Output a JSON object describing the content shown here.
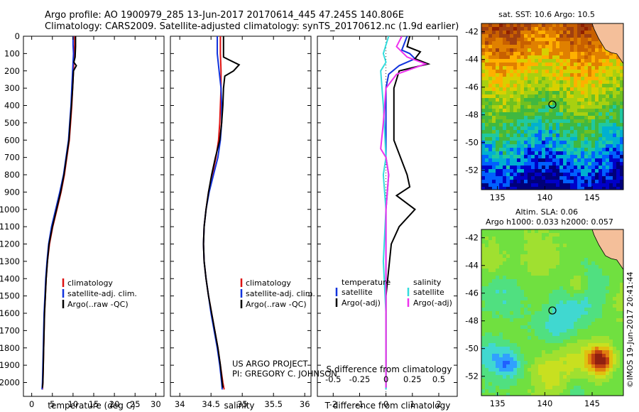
{
  "header": {
    "line1": "Argo profile: AO 1900979_285 13-Jun-2017 20170614_445 47.245S 140.806E",
    "line2": "Climatology: CARS2009. Satellite-adjusted climatology: synTS_20170612.nc (1.9d earlier)"
  },
  "credits": {
    "project": "US ARGO PROJECT",
    "pi": "PI: GREGORY C. JOHNSON",
    "imos": "©IMOS 19-Jun-2017 20:41:44"
  },
  "colors": {
    "climatology": "#dd1111",
    "satellite": "#1133dd",
    "argo": "#000000",
    "sat_salinity": "#33dddd",
    "argo_salinity": "#ee33ee",
    "land": "#f4bf9a"
  },
  "chart_data": [
    {
      "type": "line",
      "id": "temperature",
      "xlabel": "temperature (deg C)",
      "xlim": [
        -2,
        32
      ],
      "ylim": [
        0,
        2080
      ],
      "xticks": [
        0,
        5,
        10,
        15,
        20,
        25,
        30
      ],
      "yticks": [
        0,
        100,
        200,
        300,
        400,
        500,
        600,
        700,
        800,
        900,
        1000,
        1100,
        1200,
        1300,
        1400,
        1500,
        1600,
        1700,
        1800,
        1900,
        2000
      ],
      "legend": [
        "climatology",
        "satellite-adj. clim.",
        "Argo(..raw -QC)"
      ],
      "series": [
        {
          "name": "climatology",
          "color": "#dd1111",
          "points": [
            [
              10.4,
              0
            ],
            [
              10.4,
              50
            ],
            [
              10.3,
              100
            ],
            [
              10.2,
              150
            ],
            [
              10.1,
              200
            ],
            [
              9.9,
              300
            ],
            [
              9.7,
              400
            ],
            [
              9.4,
              500
            ],
            [
              9.1,
              600
            ],
            [
              8.5,
              700
            ],
            [
              7.9,
              800
            ],
            [
              7.1,
              900
            ],
            [
              6.1,
              1000
            ],
            [
              5.1,
              1100
            ],
            [
              4.3,
              1200
            ],
            [
              3.8,
              1300
            ],
            [
              3.5,
              1400
            ],
            [
              3.3,
              1500
            ],
            [
              3.1,
              1600
            ],
            [
              3.0,
              1700
            ],
            [
              2.9,
              1800
            ],
            [
              2.8,
              1900
            ],
            [
              2.7,
              2000
            ],
            [
              2.6,
              2040
            ]
          ]
        },
        {
          "name": "satellite-adj. clim.",
          "color": "#1133dd",
          "points": [
            [
              10.0,
              0
            ],
            [
              10.0,
              50
            ],
            [
              10.1,
              100
            ],
            [
              10.0,
              150
            ],
            [
              9.9,
              200
            ],
            [
              9.7,
              300
            ],
            [
              9.5,
              400
            ],
            [
              9.2,
              500
            ],
            [
              8.9,
              600
            ],
            [
              8.3,
              700
            ],
            [
              7.7,
              800
            ],
            [
              6.8,
              900
            ],
            [
              5.8,
              1000
            ],
            [
              4.8,
              1100
            ],
            [
              4.1,
              1200
            ],
            [
              3.7,
              1300
            ],
            [
              3.4,
              1400
            ],
            [
              3.2,
              1500
            ],
            [
              3.0,
              1600
            ],
            [
              2.9,
              1700
            ],
            [
              2.8,
              1800
            ],
            [
              2.7,
              1900
            ],
            [
              2.6,
              2000
            ],
            [
              2.5,
              2040
            ]
          ]
        },
        {
          "name": "Argo(..raw -QC)",
          "color": "#000000",
          "points": [
            [
              10.6,
              0
            ],
            [
              10.6,
              60
            ],
            [
              10.5,
              120
            ],
            [
              10.2,
              150
            ],
            [
              10.8,
              170
            ],
            [
              10.1,
              200
            ],
            [
              9.9,
              300
            ],
            [
              9.6,
              400
            ],
            [
              9.3,
              500
            ],
            [
              9.0,
              600
            ],
            [
              8.4,
              700
            ],
            [
              7.8,
              800
            ],
            [
              7.0,
              900
            ],
            [
              6.0,
              1000
            ],
            [
              5.0,
              1100
            ],
            [
              4.2,
              1200
            ],
            [
              3.8,
              1300
            ],
            [
              3.5,
              1400
            ],
            [
              3.3,
              1500
            ],
            [
              3.1,
              1600
            ],
            [
              3.0,
              1700
            ],
            [
              2.9,
              1800
            ],
            [
              2.8,
              1900
            ],
            [
              2.7,
              2000
            ],
            [
              2.6,
              2030
            ]
          ]
        }
      ]
    },
    {
      "type": "line",
      "id": "salinity",
      "xlabel": "salinity",
      "xlim": [
        33.85,
        36.1
      ],
      "ylim": [
        0,
        2080
      ],
      "xticks": [
        34,
        34.5,
        35,
        35.5,
        36
      ],
      "xticklabels": [
        "34",
        "34.5",
        "35",
        "35.5",
        "36"
      ],
      "legend": [
        "climatology",
        "satellite-adj. clim.",
        "Argo(..raw -QC)"
      ],
      "series": [
        {
          "name": "climatology",
          "color": "#dd1111",
          "points": [
            [
              34.65,
              0
            ],
            [
              34.65,
              100
            ],
            [
              34.66,
              200
            ],
            [
              34.66,
              300
            ],
            [
              34.65,
              400
            ],
            [
              34.64,
              500
            ],
            [
              34.62,
              600
            ],
            [
              34.58,
              700
            ],
            [
              34.52,
              800
            ],
            [
              34.46,
              900
            ],
            [
              34.42,
              1000
            ],
            [
              34.39,
              1100
            ],
            [
              34.38,
              1200
            ],
            [
              34.39,
              1300
            ],
            [
              34.42,
              1400
            ],
            [
              34.46,
              1500
            ],
            [
              34.51,
              1600
            ],
            [
              34.56,
              1700
            ],
            [
              34.61,
              1800
            ],
            [
              34.65,
              1900
            ],
            [
              34.69,
              2000
            ],
            [
              34.71,
              2040
            ]
          ]
        },
        {
          "name": "satellite-adj. clim.",
          "color": "#1133dd",
          "points": [
            [
              34.6,
              0
            ],
            [
              34.6,
              100
            ],
            [
              34.63,
              200
            ],
            [
              34.66,
              300
            ],
            [
              34.67,
              400
            ],
            [
              34.67,
              500
            ],
            [
              34.65,
              600
            ],
            [
              34.61,
              700
            ],
            [
              34.54,
              800
            ],
            [
              34.47,
              900
            ],
            [
              34.42,
              1000
            ],
            [
              34.39,
              1100
            ],
            [
              34.38,
              1200
            ],
            [
              34.39,
              1300
            ],
            [
              34.42,
              1400
            ],
            [
              34.46,
              1500
            ],
            [
              34.5,
              1600
            ],
            [
              34.55,
              1700
            ],
            [
              34.6,
              1800
            ],
            [
              34.64,
              1900
            ],
            [
              34.67,
              2000
            ],
            [
              34.68,
              2040
            ]
          ]
        },
        {
          "name": "Argo(..raw -QC)",
          "color": "#000000",
          "points": [
            [
              34.7,
              0
            ],
            [
              34.7,
              120
            ],
            [
              34.78,
              135
            ],
            [
              34.95,
              165
            ],
            [
              34.86,
              200
            ],
            [
              34.72,
              230
            ],
            [
              34.7,
              300
            ],
            [
              34.69,
              400
            ],
            [
              34.67,
              500
            ],
            [
              34.64,
              600
            ],
            [
              34.57,
              700
            ],
            [
              34.51,
              800
            ],
            [
              34.46,
              900
            ],
            [
              34.42,
              1000
            ],
            [
              34.39,
              1100
            ],
            [
              34.38,
              1200
            ],
            [
              34.39,
              1300
            ],
            [
              34.42,
              1400
            ],
            [
              34.46,
              1500
            ],
            [
              34.51,
              1600
            ],
            [
              34.56,
              1700
            ],
            [
              34.61,
              1800
            ],
            [
              34.65,
              1900
            ],
            [
              34.68,
              2000
            ],
            [
              34.69,
              2030
            ]
          ]
        }
      ]
    },
    {
      "type": "line",
      "id": "difference",
      "xlabel": "T difference from climatology",
      "xlabel2": "S difference from climatology",
      "xlim": [
        -2.6,
        2.7
      ],
      "ylim": [
        0,
        2080
      ],
      "xticks": [
        -2,
        -1,
        0,
        1,
        2
      ],
      "s_xticks": [
        -0.5,
        -0.25,
        0,
        0.25,
        0.5
      ],
      "s_xticklabels": [
        "-0.5",
        "-0.25",
        "0",
        "0.25",
        "0.5"
      ],
      "legend": {
        "temperature_header": "temperature",
        "salinity_header": "salinity",
        "temperature_items": [
          "satellite",
          "Argo(-adj)"
        ],
        "salinity_items": [
          "satellite",
          "Argo(-adj)"
        ]
      },
      "series": [
        {
          "name": "satellite",
          "color": "#1133dd",
          "points": [
            [
              0.8,
              0
            ],
            [
              0.6,
              80
            ],
            [
              0.9,
              100
            ],
            [
              1.1,
              130
            ],
            [
              0.5,
              170
            ],
            [
              0.1,
              220
            ],
            [
              0.0,
              300
            ],
            [
              0.0,
              500
            ],
            [
              0.0,
              700
            ],
            [
              0.1,
              800
            ],
            [
              0.0,
              1000
            ],
            [
              0.0,
              1200
            ],
            [
              0.0,
              1500
            ],
            [
              0.0,
              1800
            ],
            [
              0.0,
              2040
            ]
          ]
        },
        {
          "name": "Argo(-adj)",
          "color": "#000000",
          "points": [
            [
              0.9,
              0
            ],
            [
              0.8,
              60
            ],
            [
              1.3,
              90
            ],
            [
              1.1,
              130
            ],
            [
              1.6,
              160
            ],
            [
              0.5,
              200
            ],
            [
              0.3,
              300
            ],
            [
              0.3,
              600
            ],
            [
              0.8,
              800
            ],
            [
              0.9,
              870
            ],
            [
              0.4,
              920
            ],
            [
              1.1,
              1000
            ],
            [
              0.5,
              1100
            ],
            [
              0.2,
              1200
            ],
            [
              0.0,
              1500
            ],
            [
              0.0,
              2030
            ]
          ]
        },
        {
          "name": "satellite",
          "color": "#33dddd",
          "points": [
            [
              0.1,
              0
            ],
            [
              0.0,
              50
            ],
            [
              -0.1,
              100
            ],
            [
              0.0,
              150
            ],
            [
              -0.2,
              200
            ],
            [
              -0.1,
              400
            ],
            [
              0.0,
              700
            ],
            [
              -0.1,
              800
            ],
            [
              0.0,
              1000
            ],
            [
              -0.1,
              1300
            ],
            [
              0.0,
              1600
            ],
            [
              0.0,
              2040
            ]
          ]
        },
        {
          "name": "Argo(-adj)",
          "color": "#ee33ee",
          "points": [
            [
              0.6,
              0
            ],
            [
              0.4,
              60
            ],
            [
              0.8,
              120
            ],
            [
              1.5,
              160
            ],
            [
              0.4,
              220
            ],
            [
              0.0,
              300
            ],
            [
              -0.1,
              500
            ],
            [
              -0.2,
              650
            ],
            [
              0.0,
              700
            ],
            [
              0.1,
              800
            ],
            [
              0.0,
              1000
            ],
            [
              0.0,
              1200
            ],
            [
              0.0,
              1500
            ],
            [
              0.0,
              2030
            ]
          ]
        }
      ]
    },
    {
      "type": "heatmap",
      "id": "sst-map",
      "title": "sat. SST: 10.6 Argo: 10.5",
      "xlim": [
        133.3,
        148.3
      ],
      "ylim": [
        -53.4,
        -41.4
      ],
      "xticks": [
        135,
        140,
        145
      ],
      "yticks": [
        -42,
        -44,
        -46,
        -48,
        -50,
        -52
      ],
      "marker": [
        140.8,
        -47.25
      ]
    },
    {
      "type": "heatmap",
      "id": "sla-map",
      "title": "Altim. SLA: 0.06",
      "subtitle": "Argo h1000: 0.033 h2000: 0.057",
      "xlim": [
        133.3,
        148.3
      ],
      "ylim": [
        -53.4,
        -41.4
      ],
      "xticks": [
        135,
        140,
        145
      ],
      "yticks": [
        -42,
        -44,
        -46,
        -48,
        -50,
        -52
      ],
      "marker": [
        140.8,
        -47.25
      ]
    }
  ]
}
